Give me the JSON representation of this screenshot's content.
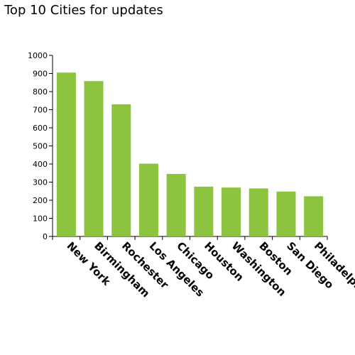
{
  "chart_data": {
    "type": "bar",
    "title": "Top 10 Cities for updates",
    "xlabel": "",
    "ylabel": "",
    "categories": [
      "New York",
      "Birmingham",
      "Rochester",
      "Los Angeles",
      "Chicago",
      "Houston",
      "Washington",
      "Boston",
      "San Diego",
      "Philadelphia"
    ],
    "values": [
      905,
      858,
      730,
      402,
      345,
      275,
      270,
      265,
      248,
      222
    ],
    "ylim": [
      0,
      1000
    ],
    "yticks": [
      0,
      100,
      200,
      300,
      400,
      500,
      600,
      700,
      800,
      900,
      1000
    ],
    "ytick_labels": [
      "0",
      "100",
      "200",
      "300",
      "400",
      "500",
      "600",
      "700",
      "800",
      "900",
      "1000"
    ],
    "grid": false,
    "legend": "none",
    "bar_color": "#8dc43f",
    "axis_color": "#000000"
  }
}
